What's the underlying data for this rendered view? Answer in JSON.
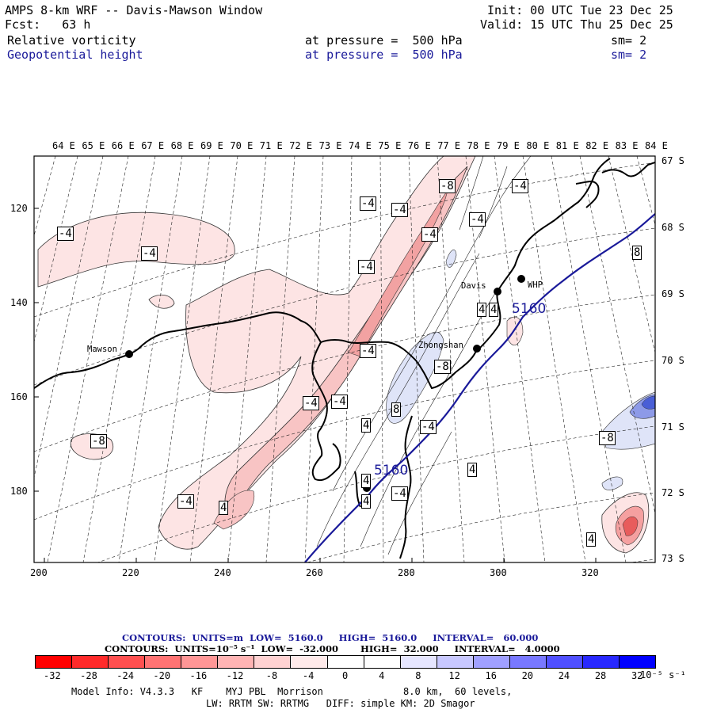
{
  "header": {
    "title": "AMPS 8-km WRF -- Davis-Mawson Window",
    "init": "Init: 00 UTC Tue 23 Dec 25",
    "fcst": "Fcst:   63 h",
    "valid": "Valid: 15 UTC Thu 25 Dec 25",
    "field1": {
      "name": "Relative vorticity",
      "pressure": "at pressure =  500 hPa",
      "sm": "sm= 2"
    },
    "field2": {
      "name": "Geopotential height",
      "pressure": "at pressure =  500 hPa",
      "sm": "sm= 2"
    }
  },
  "map": {
    "top_lon_labels": [
      "64 E",
      "65 E",
      "66 E",
      "67 E",
      "68 E",
      "69 E",
      "70 E",
      "71 E",
      "72 E",
      "73 E",
      "74 E",
      "75 E",
      "76 E",
      "77 E",
      "78 E",
      "79 E",
      "80 E",
      "81 E",
      "82 E",
      "83 E",
      "84 E"
    ],
    "right_lat_labels": [
      "67 S",
      "68 S",
      "69 S",
      "70 S",
      "71 S",
      "72 S",
      "73 S"
    ],
    "left_y_ticks": [
      "120",
      "140",
      "160",
      "180"
    ],
    "bottom_x_ticks": [
      "200",
      "220",
      "240",
      "260",
      "280",
      "300",
      "320"
    ],
    "stations": [
      "Mawson",
      "Davis",
      "WHP",
      "Zhongshan"
    ],
    "height_contour_label": "5160",
    "contour_labels": [
      "-4",
      "-4",
      "-4",
      "-4",
      "-4",
      "-4",
      "-8",
      "-4",
      "-4",
      "4",
      "-4",
      "-8",
      "-4",
      "-4",
      "-8",
      "-4",
      "8",
      "4",
      "-4",
      "4",
      "4",
      "-4",
      "4",
      "-8",
      "4",
      "8",
      "4",
      "4",
      "-4"
    ],
    "colors": {
      "height": "#1a1a9a",
      "pos_light": "#fbe0e0",
      "pos_mid": "#f5b4b4",
      "neg_light": "#dde2f8",
      "neg_mid": "#a8b2f0"
    }
  },
  "contour_info": {
    "line1": "CONTOURS:  UNITS=m  LOW=  5160.0     HIGH=  5160.0     INTERVAL=   60.000",
    "line2": "CONTOURS:  UNITS=10⁻⁵ s⁻¹  LOW=  -32.000       HIGH=  32.000     INTERVAL=   4.0000"
  },
  "colorbar": {
    "colors": [
      "#ff0000",
      "#ff2a2a",
      "#ff5050",
      "#ff7373",
      "#ff9696",
      "#ffb4b4",
      "#ffd2d2",
      "#ffeaea",
      "#ffffff",
      "#ffffff",
      "#e6e6ff",
      "#c8c8ff",
      "#a0a0ff",
      "#7878ff",
      "#5050ff",
      "#2828ff",
      "#0000ff"
    ],
    "tick_labels": [
      "-32",
      "-28",
      "-24",
      "-20",
      "-16",
      "-12",
      "-8",
      "-4",
      "0",
      "4",
      "8",
      "12",
      "16",
      "20",
      "24",
      "28",
      "32"
    ],
    "units": "10⁻⁵ s⁻¹"
  },
  "model_info": {
    "line1": "Model Info: V4.3.3   KF    MYJ PBL  Morrison              8.0 km,  60 levels,",
    "line2": "LW: RRTM SW: RRTMG   DIFF: simple KM: 2D Smagor"
  }
}
